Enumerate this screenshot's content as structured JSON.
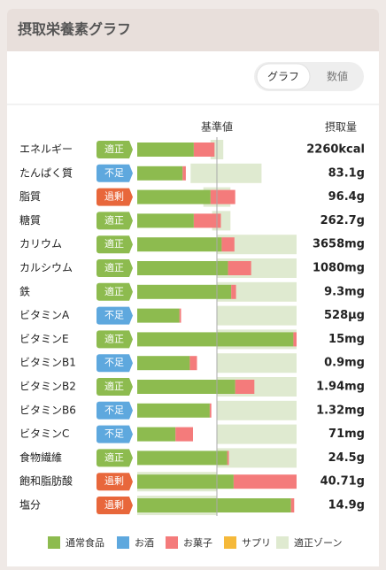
{
  "header": {
    "title": "摂取栄養素グラフ"
  },
  "tabs": [
    "グラフ",
    "数値"
  ],
  "chart_data": {
    "type": "stacked-hbar",
    "reference": {
      "label": "基準値",
      "value": 100
    },
    "intake_header": "摂取量",
    "xlim": [
      0,
      200
    ],
    "categories": [
      "エネルギー",
      "たんぱく質",
      "脂質",
      "糖質",
      "カリウム",
      "カルシウム",
      "鉄",
      "ビタミンA",
      "ビタミンE",
      "ビタミンB1",
      "ビタミンB2",
      "ビタミンB6",
      "ビタミンC",
      "食物繊維",
      "飽和脂肪酸",
      "塩分"
    ],
    "status": [
      "適正",
      "不足",
      "過剰",
      "適正",
      "適正",
      "適正",
      "適正",
      "不足",
      "適正",
      "不足",
      "適正",
      "不足",
      "不足",
      "適正",
      "過剰",
      "過剰"
    ],
    "status_colors": {
      "適正": "#8dbb4f",
      "不足": "#5ea8de",
      "過剰": "#e8673b"
    },
    "intake": [
      "2260kcal",
      "83.1g",
      "96.4g",
      "262.7g",
      "3658mg",
      "1080mg",
      "9.3mg",
      "528μg",
      "15mg",
      "0.9mg",
      "1.94mg",
      "1.32mg",
      "71mg",
      "24.5g",
      "40.71g",
      "14.9g"
    ],
    "series": [
      {
        "name": "通常食品",
        "color": "#8dbb4f",
        "values": [
          71,
          57,
          92,
          71,
          106,
          114,
          118,
          53,
          196,
          66,
          123,
          91,
          48,
          113,
          121,
          193
        ]
      },
      {
        "name": "お酒",
        "color": "#5ea8de",
        "values": [
          0,
          0,
          0,
          0,
          0,
          0,
          0,
          0,
          0,
          0,
          0,
          0,
          0,
          0,
          0,
          0
        ]
      },
      {
        "name": "お菓子",
        "color": "#f47b7b",
        "values": [
          26,
          4,
          31,
          34,
          16,
          29,
          6,
          2,
          4,
          9,
          24,
          2,
          22,
          2,
          79,
          4
        ]
      },
      {
        "name": "サプリ",
        "color": "#f5b93a",
        "values": [
          0,
          0,
          0,
          0,
          0,
          0,
          0,
          0,
          0,
          0,
          0,
          0,
          0,
          0,
          0,
          0
        ]
      }
    ],
    "zone": {
      "name": "適正ゾーン",
      "color": "#dfead0",
      "ranges": [
        [
          92,
          108
        ],
        [
          67,
          156
        ],
        [
          83,
          117
        ],
        [
          94,
          117
        ],
        [
          100,
          200
        ],
        [
          100,
          200
        ],
        [
          100,
          200
        ],
        [
          100,
          200
        ],
        [
          100,
          200
        ],
        [
          100,
          200
        ],
        [
          100,
          200
        ],
        [
          100,
          200
        ],
        [
          100,
          200
        ],
        [
          100,
          200
        ],
        [
          0,
          100
        ],
        [
          0,
          100
        ]
      ]
    }
  }
}
